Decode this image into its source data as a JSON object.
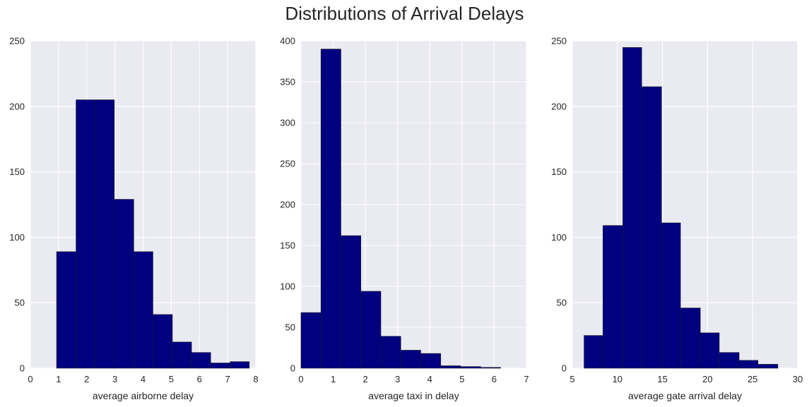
{
  "figure": {
    "title": "Distributions of Arrival Delays"
  },
  "style": {
    "background": "#EAEAF2",
    "grid": "#FFFFFF",
    "bar": "#000080",
    "bar_edge": "#1a1a1a",
    "text": "#262626"
  },
  "chart_data": [
    {
      "type": "bar",
      "title": "",
      "xlabel": "average airborne delay",
      "ylabel": "",
      "xlim": [
        0,
        8
      ],
      "ylim": [
        0,
        250
      ],
      "xticks": [
        0,
        1,
        2,
        3,
        4,
        5,
        6,
        7,
        8
      ],
      "yticks": [
        0,
        50,
        100,
        150,
        200,
        250
      ],
      "grid": true,
      "bins": [
        {
          "x0": 0.93,
          "x1": 1.62,
          "count": 89
        },
        {
          "x0": 1.62,
          "x1": 2.3,
          "count": 205
        },
        {
          "x0": 2.3,
          "x1": 2.98,
          "count": 205
        },
        {
          "x0": 2.98,
          "x1": 3.67,
          "count": 129
        },
        {
          "x0": 3.67,
          "x1": 4.35,
          "count": 89
        },
        {
          "x0": 4.35,
          "x1": 5.04,
          "count": 41
        },
        {
          "x0": 5.04,
          "x1": 5.72,
          "count": 20
        },
        {
          "x0": 5.72,
          "x1": 6.4,
          "count": 12
        },
        {
          "x0": 6.4,
          "x1": 7.09,
          "count": 4
        },
        {
          "x0": 7.09,
          "x1": 7.77,
          "count": 5
        }
      ]
    },
    {
      "type": "bar",
      "title": "",
      "xlabel": "average taxi in delay",
      "ylabel": "",
      "xlim": [
        0,
        7
      ],
      "ylim": [
        0,
        400
      ],
      "xticks": [
        0,
        1,
        2,
        3,
        4,
        5,
        6,
        7
      ],
      "yticks": [
        0,
        50,
        100,
        150,
        200,
        250,
        300,
        350,
        400
      ],
      "grid": true,
      "bins": [
        {
          "x0": 0.0,
          "x1": 0.62,
          "count": 68
        },
        {
          "x0": 0.62,
          "x1": 1.24,
          "count": 390
        },
        {
          "x0": 1.24,
          "x1": 1.86,
          "count": 162
        },
        {
          "x0": 1.86,
          "x1": 2.48,
          "count": 94
        },
        {
          "x0": 2.48,
          "x1": 3.1,
          "count": 39
        },
        {
          "x0": 3.1,
          "x1": 3.72,
          "count": 22
        },
        {
          "x0": 3.72,
          "x1": 4.34,
          "count": 18
        },
        {
          "x0": 4.34,
          "x1": 4.96,
          "count": 3
        },
        {
          "x0": 4.96,
          "x1": 5.58,
          "count": 2
        },
        {
          "x0": 5.58,
          "x1": 6.2,
          "count": 1
        }
      ]
    },
    {
      "type": "bar",
      "title": "",
      "xlabel": "average gate arrival delay",
      "ylabel": "",
      "xlim": [
        5,
        30
      ],
      "ylim": [
        0,
        250
      ],
      "xticks": [
        5,
        10,
        15,
        20,
        25,
        30
      ],
      "yticks": [
        0,
        50,
        100,
        150,
        200,
        250
      ],
      "grid": true,
      "bins": [
        {
          "x0": 6.3,
          "x1": 8.4,
          "count": 25
        },
        {
          "x0": 8.4,
          "x1": 10.6,
          "count": 109
        },
        {
          "x0": 10.6,
          "x1": 12.7,
          "count": 245
        },
        {
          "x0": 12.7,
          "x1": 14.9,
          "count": 215
        },
        {
          "x0": 14.9,
          "x1": 17.0,
          "count": 111
        },
        {
          "x0": 17.0,
          "x1": 19.2,
          "count": 46
        },
        {
          "x0": 19.2,
          "x1": 21.3,
          "count": 27
        },
        {
          "x0": 21.3,
          "x1": 23.5,
          "count": 12
        },
        {
          "x0": 23.5,
          "x1": 25.6,
          "count": 6
        },
        {
          "x0": 25.6,
          "x1": 27.8,
          "count": 3
        }
      ]
    }
  ]
}
